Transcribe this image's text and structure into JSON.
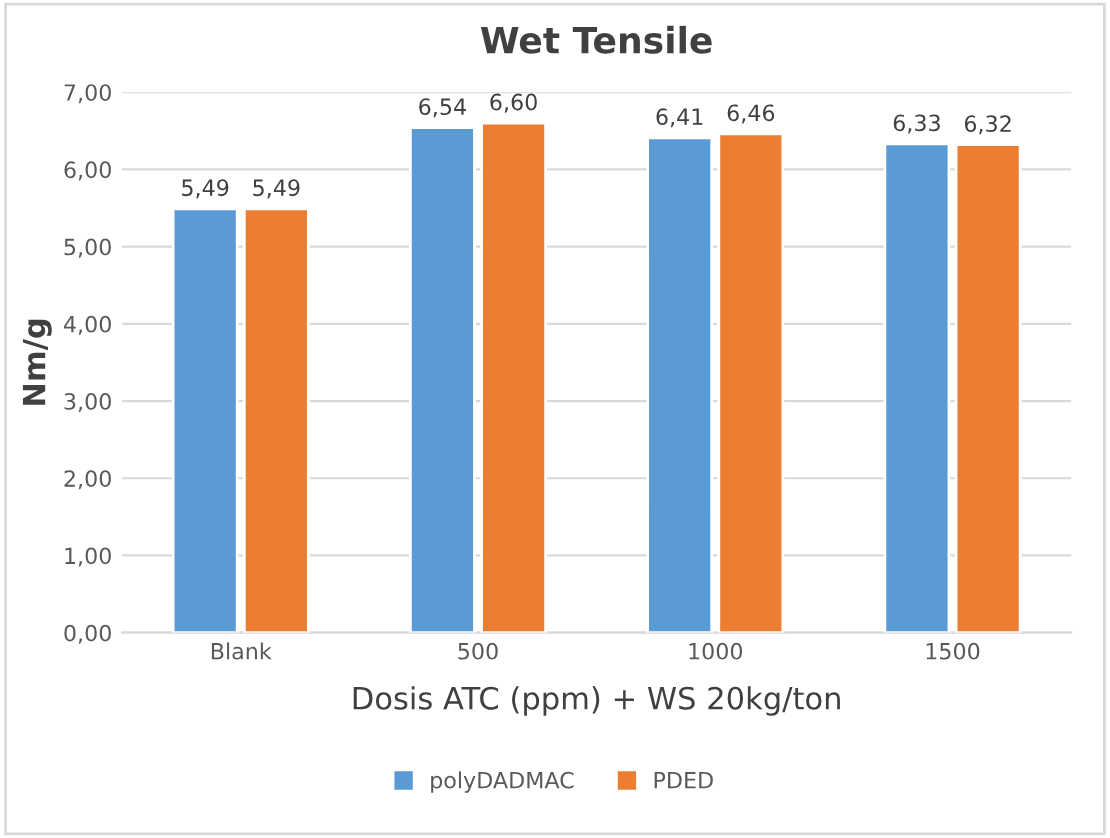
{
  "chart_data": {
    "type": "bar",
    "title": "Wet Tensile",
    "xlabel": "Dosis ATC (ppm) + WS 20kg/ton",
    "ylabel": "Nm/g",
    "categories": [
      "Blank",
      "500",
      "1000",
      "1500"
    ],
    "series": [
      {
        "name": "polyDADMAC",
        "color": "#5b9bd5",
        "values": [
          5.49,
          6.54,
          6.41,
          6.33
        ],
        "value_labels": [
          "5,49",
          "6,54",
          "6,41",
          "6,33"
        ]
      },
      {
        "name": "PDED",
        "color": "#ed7d31",
        "values": [
          5.49,
          6.6,
          6.46,
          6.32
        ],
        "value_labels": [
          "5,49",
          "6,60",
          "6,46",
          "6,32"
        ]
      }
    ],
    "ylim": [
      0,
      7
    ],
    "yticks": [
      {
        "value": 0,
        "label": "0,00"
      },
      {
        "value": 1,
        "label": "1,00"
      },
      {
        "value": 2,
        "label": "2,00"
      },
      {
        "value": 3,
        "label": "3,00"
      },
      {
        "value": 4,
        "label": "4,00"
      },
      {
        "value": 5,
        "label": "5,00"
      },
      {
        "value": 6,
        "label": "6,00"
      },
      {
        "value": 7,
        "label": "7,00"
      }
    ],
    "grid": "y",
    "legend": "bottom"
  }
}
